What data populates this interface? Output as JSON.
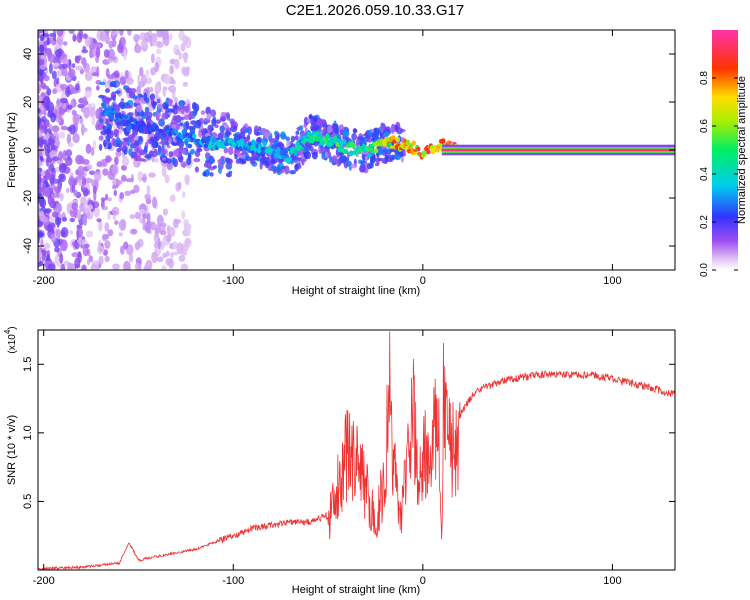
{
  "title": "C2E1.2026.059.10.33.G17",
  "chart_data": [
    {
      "type": "heatmap",
      "xlabel": "Height of straight line (km)",
      "ylabel": "Frequency (Hz)",
      "xlim": [
        -203,
        133
      ],
      "ylim": [
        -50,
        50
      ],
      "xticks": [
        -200,
        -100,
        0,
        100
      ],
      "xtick_labels": [
        "-200",
        "-100",
        "0",
        "100"
      ],
      "yticks": [
        -40,
        -20,
        0,
        20,
        40
      ],
      "ytick_labels": [
        "-40",
        "-20",
        "0",
        "20",
        "40"
      ],
      "colorbar": {
        "label": "Normalized spectral amplitude",
        "range": [
          0,
          1
        ],
        "ticks": [
          0.0,
          0.2,
          0.4,
          0.6,
          0.8
        ],
        "tick_labels": [
          "0.0",
          "0.2",
          "0.4",
          "0.6",
          "0.8"
        ]
      },
      "ridge": {
        "x": [
          -165,
          -150,
          -130,
          -110,
          -90,
          -80,
          -70,
          -60,
          -50,
          -40,
          -30,
          -20,
          -15,
          -10,
          -5,
          0,
          5,
          10,
          20,
          40,
          60,
          80,
          100,
          133
        ],
        "frequency": [
          15,
          10,
          6,
          3,
          2,
          0,
          -3,
          6,
          4,
          1,
          -1,
          3,
          3,
          2,
          1,
          -1,
          0,
          2,
          0,
          0,
          0,
          0,
          0,
          0
        ],
        "amplitude": [
          0.3,
          0.25,
          0.3,
          0.4,
          0.4,
          0.4,
          0.45,
          0.5,
          0.55,
          0.55,
          0.5,
          0.7,
          0.85,
          0.9,
          0.9,
          0.9,
          0.9,
          0.95,
          0.98,
          1.0,
          1.0,
          1.0,
          1.0,
          1.0
        ]
      }
    },
    {
      "type": "line",
      "xlabel": "Height of straight line (km)",
      "ylabel": "SNR (10 * v/v)",
      "scale_label": "(x10",
      "scale_exponent": "4",
      "xlim": [
        -203,
        133
      ],
      "ylim": [
        0,
        1.75
      ],
      "xticks": [
        -200,
        -100,
        0,
        100
      ],
      "xtick_labels": [
        "-200",
        "-100",
        "0",
        "100"
      ],
      "yticks": [
        0.5,
        1.0,
        1.5
      ],
      "ytick_labels": [
        "0.5",
        "1.0",
        "1.5"
      ],
      "color": "#ee3333",
      "series": [
        {
          "name": "SNR",
          "x": [
            -203,
            -180,
            -160,
            -155,
            -150,
            -140,
            -120,
            -110,
            -100,
            -90,
            -80,
            -70,
            -60,
            -50,
            -45,
            -40,
            -35,
            -30,
            -25,
            -20,
            -17,
            -16,
            -15,
            -12,
            -10,
            -8,
            -5,
            -2,
            0,
            5,
            8,
            10,
            11,
            13,
            15,
            20,
            25,
            30,
            40,
            50,
            60,
            70,
            80,
            90,
            100,
            110,
            120,
            133
          ],
          "y": [
            0.01,
            0.02,
            0.05,
            0.2,
            0.07,
            0.1,
            0.15,
            0.2,
            0.25,
            0.3,
            0.33,
            0.35,
            0.35,
            0.4,
            0.7,
            1.0,
            0.9,
            0.7,
            0.4,
            0.8,
            1.75,
            0.6,
            1.1,
            0.4,
            0.6,
            1.2,
            1.3,
            0.8,
            0.95,
            1.1,
            1.3,
            0.15,
            1.72,
            1.1,
            1.0,
            1.15,
            1.25,
            1.32,
            1.37,
            1.4,
            1.42,
            1.43,
            1.42,
            1.42,
            1.4,
            1.36,
            1.33,
            1.28
          ]
        }
      ]
    }
  ]
}
